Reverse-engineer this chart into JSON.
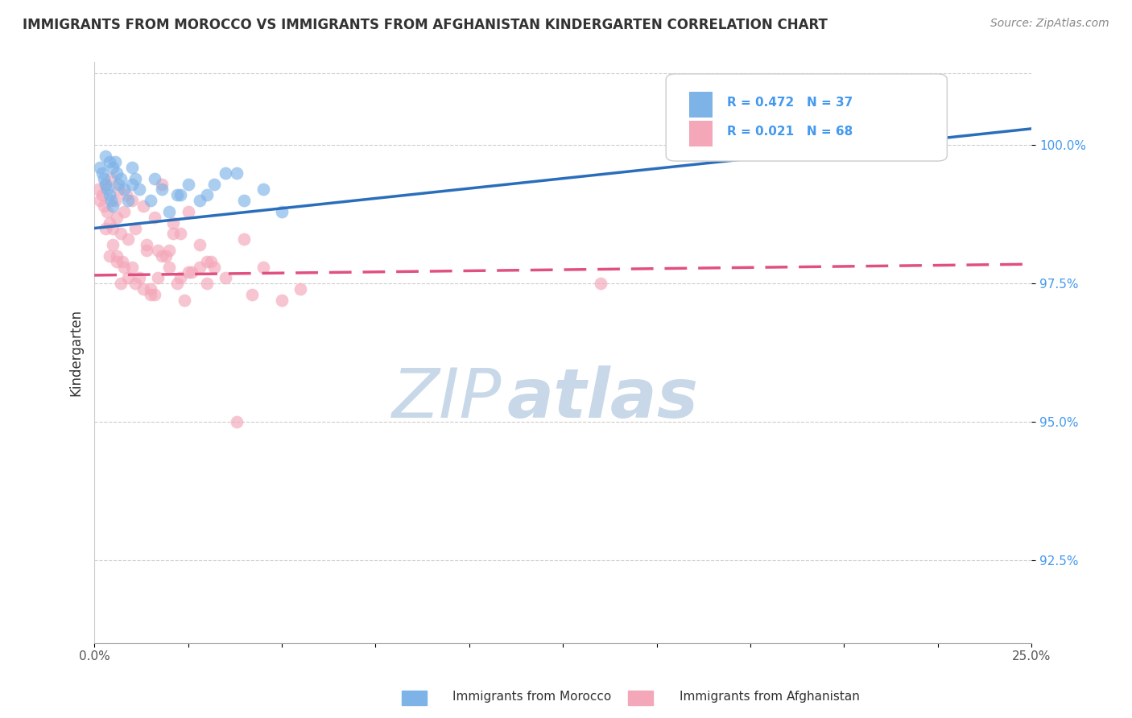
{
  "title": "IMMIGRANTS FROM MOROCCO VS IMMIGRANTS FROM AFGHANISTAN KINDERGARTEN CORRELATION CHART",
  "source_text": "Source: ZipAtlas.com",
  "ylabel": "Kindergarten",
  "legend_labels": [
    "Immigrants from Morocco",
    "Immigrants from Afghanistan"
  ],
  "legend_r_morocco": "R = 0.472",
  "legend_n_morocco": "N = 37",
  "legend_r_afghanistan": "R = 0.021",
  "legend_n_afghanistan": "N = 68",
  "xlim": [
    0.0,
    25.0
  ],
  "ylim": [
    91.0,
    101.5
  ],
  "yticks": [
    92.5,
    95.0,
    97.5,
    100.0
  ],
  "ytick_labels": [
    "92.5%",
    "95.0%",
    "97.5%",
    "100.0%"
  ],
  "xticks": [
    0.0,
    2.5,
    5.0,
    7.5,
    10.0,
    12.5,
    15.0,
    17.5,
    20.0,
    22.5,
    25.0
  ],
  "color_morocco": "#7EB3E8",
  "color_afghanistan": "#F4A7B9",
  "trendline_morocco_color": "#2A6EBB",
  "trendline_afghanistan_color": "#E05080",
  "watermark_color": "#C8D8E8",
  "morocco_x": [
    0.15,
    0.2,
    0.25,
    0.3,
    0.35,
    0.4,
    0.45,
    0.5,
    0.55,
    0.6,
    0.65,
    0.7,
    0.8,
    0.9,
    1.0,
    1.1,
    1.5,
    1.8,
    2.0,
    2.2,
    2.5,
    2.8,
    3.0,
    3.2,
    3.5,
    4.0,
    4.5,
    5.0,
    0.3,
    0.5,
    1.2,
    1.6,
    2.3,
    3.8,
    20.0,
    0.4,
    1.0
  ],
  "morocco_y": [
    99.6,
    99.5,
    99.4,
    99.3,
    99.2,
    99.1,
    99.0,
    98.9,
    99.7,
    99.5,
    99.3,
    99.4,
    99.2,
    99.0,
    99.6,
    99.4,
    99.0,
    99.2,
    98.8,
    99.1,
    99.3,
    99.0,
    99.1,
    99.3,
    99.5,
    99.0,
    99.2,
    98.8,
    99.8,
    99.6,
    99.2,
    99.4,
    99.1,
    99.5,
    100.2,
    99.7,
    99.3
  ],
  "afghanistan_x": [
    0.1,
    0.15,
    0.2,
    0.25,
    0.3,
    0.35,
    0.4,
    0.45,
    0.5,
    0.55,
    0.6,
    0.65,
    0.7,
    0.75,
    0.8,
    0.85,
    0.9,
    1.0,
    1.1,
    1.2,
    1.3,
    1.4,
    1.5,
    1.6,
    1.7,
    1.8,
    1.9,
    2.0,
    2.1,
    2.2,
    2.3,
    2.4,
    2.5,
    0.5,
    0.6,
    0.7,
    1.0,
    1.5,
    2.0,
    2.5,
    3.0,
    3.5,
    4.0,
    5.0,
    0.3,
    0.8,
    1.3,
    1.8,
    2.3,
    2.8,
    0.6,
    1.1,
    1.6,
    2.1,
    2.6,
    3.1,
    0.9,
    1.4,
    4.5,
    5.5,
    3.0,
    2.8,
    13.5,
    0.4,
    1.7,
    3.2,
    4.2,
    3.8
  ],
  "afghanistan_y": [
    99.2,
    99.0,
    99.1,
    98.9,
    99.3,
    98.8,
    98.6,
    99.4,
    98.5,
    99.0,
    98.7,
    99.2,
    98.4,
    97.9,
    98.8,
    99.1,
    98.3,
    99.0,
    98.5,
    97.6,
    98.9,
    98.2,
    97.3,
    98.7,
    98.1,
    99.3,
    98.0,
    97.8,
    98.6,
    97.5,
    98.4,
    97.2,
    98.8,
    98.2,
    97.9,
    97.5,
    97.8,
    97.4,
    98.1,
    97.7,
    97.9,
    97.6,
    98.3,
    97.2,
    98.5,
    97.8,
    97.4,
    98.0,
    97.6,
    98.2,
    98.0,
    97.5,
    97.3,
    98.4,
    97.7,
    97.9,
    97.6,
    98.1,
    97.8,
    97.4,
    97.5,
    97.8,
    97.5,
    98.0,
    97.6,
    97.8,
    97.3,
    95.0
  ],
  "trendline_morocco_x0": 0.0,
  "trendline_morocco_y0": 98.5,
  "trendline_morocco_x1": 25.0,
  "trendline_morocco_y1": 100.3,
  "trendline_afghanistan_x0": 0.0,
  "trendline_afghanistan_y0": 97.65,
  "trendline_afghanistan_x1": 25.0,
  "trendline_afghanistan_y1": 97.85
}
